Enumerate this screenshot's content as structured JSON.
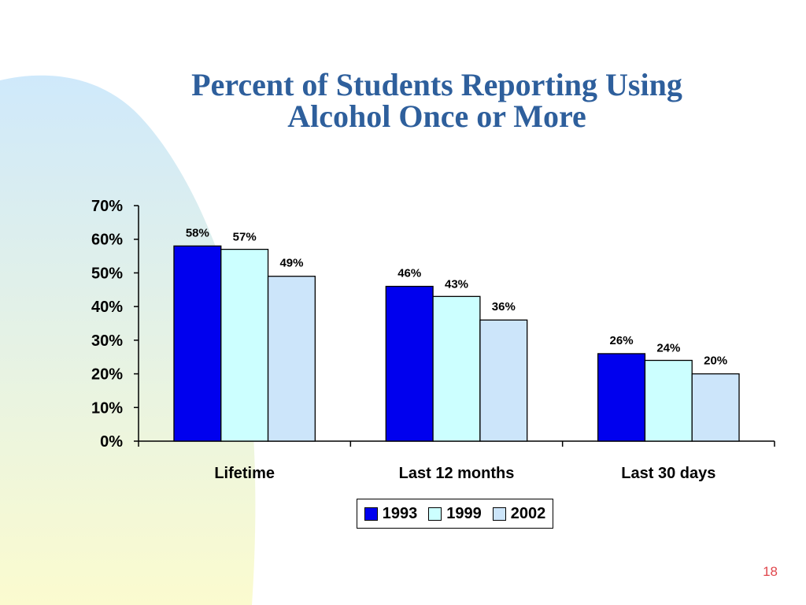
{
  "slide": {
    "title_line1": "Percent of Students Reporting Using",
    "title_line2": "Alcohol Once or More",
    "page_number": "18"
  },
  "colors": {
    "title": "#2e5f9c",
    "page_number": "#e0464c",
    "bg_blob_top": "#cfe9fb",
    "bg_blob_bottom": "#fbfbcf"
  },
  "chart_data": {
    "type": "bar",
    "title": "Percent of Students Reporting Using Alcohol Once or More",
    "xlabel": "",
    "ylabel": "",
    "categories": [
      "Lifetime",
      "Last 12 months",
      "Last 30 days"
    ],
    "series": [
      {
        "name": "1993",
        "color": "#0000ee",
        "values": [
          58,
          46,
          26
        ],
        "labels": [
          "58%",
          "46%",
          "26%"
        ]
      },
      {
        "name": "1999",
        "color": "#ccffff",
        "values": [
          57,
          43,
          24
        ],
        "labels": [
          "57%",
          "43%",
          "24%"
        ]
      },
      {
        "name": "2002",
        "color": "#cce5fa",
        "values": [
          49,
          36,
          20
        ],
        "labels": [
          "49%",
          "36%",
          "20%"
        ]
      }
    ],
    "ylim": [
      0,
      70
    ],
    "yticks": [
      0,
      10,
      20,
      30,
      40,
      50,
      60,
      70
    ],
    "ytick_labels": [
      "0%",
      "10%",
      "20%",
      "30%",
      "40%",
      "50%",
      "60%",
      "70%"
    ],
    "grid": false,
    "legend": "bottom"
  }
}
